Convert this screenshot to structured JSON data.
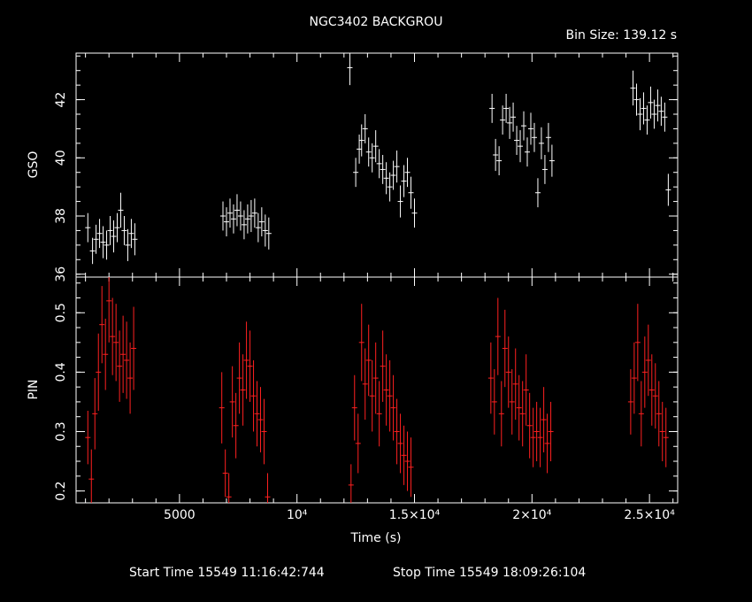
{
  "chart_data": [
    {
      "type": "scatter",
      "panel": "top",
      "title": "NGC3402 BACKGROU",
      "subtitle": "Bin Size: 139.12 s",
      "ylabel": "GSO",
      "ylim": [
        35.9,
        43.6
      ],
      "yticks": [
        36,
        38,
        40,
        42
      ],
      "ytick_labels": [
        "36",
        "38",
        "40",
        "42"
      ],
      "xlim": [
        600,
        26200
      ],
      "color": "#ffffff",
      "series": [
        {
          "x": [
            1100,
            1300,
            1450,
            1600,
            1750,
            1900,
            2050,
            2200,
            2350,
            2500,
            2650,
            2800,
            2950,
            3100,
            6850,
            7000,
            7150,
            7300,
            7450,
            7600,
            7750,
            7900,
            8050,
            8200,
            8350,
            8500,
            8650,
            8800,
            12500,
            12650,
            12750,
            12900,
            13050,
            13200,
            13350,
            13500,
            13650,
            13800,
            13950,
            14100,
            14250,
            14400,
            14550,
            14700,
            14850,
            15000,
            18300,
            18450,
            18600,
            18750,
            18900,
            19050,
            19200,
            19350,
            19500,
            19650,
            19800,
            19950,
            20100,
            20250,
            20400,
            20550,
            20700,
            20850,
            24300,
            24450,
            24600,
            24750,
            24900,
            25050,
            25200,
            25350,
            25500,
            25650,
            25800
          ],
          "y": [
            37.6,
            36.8,
            37.2,
            37.4,
            37.1,
            37.0,
            37.5,
            37.3,
            37.6,
            38.2,
            37.5,
            37.0,
            37.4,
            37.2,
            38.0,
            37.8,
            38.1,
            37.9,
            38.2,
            38.0,
            37.7,
            37.9,
            38.0,
            38.1,
            37.6,
            37.8,
            37.5,
            37.4,
            39.5,
            40.3,
            40.6,
            41.0,
            40.2,
            40.0,
            40.4,
            39.8,
            39.6,
            39.3,
            39.0,
            39.4,
            39.7,
            38.5,
            39.2,
            39.5,
            38.8,
            38.1,
            41.7,
            40.1,
            39.9,
            41.3,
            41.7,
            41.2,
            41.4,
            40.6,
            40.4,
            41.1,
            40.2,
            41.0,
            40.7,
            38.8,
            40.5,
            39.6,
            40.7,
            39.9,
            42.4,
            42.0,
            41.5,
            41.7,
            41.3,
            41.9,
            41.5,
            41.8,
            41.6,
            41.4,
            38.9
          ],
          "err": [
            0.5,
            0.45,
            0.5,
            0.5,
            0.55,
            0.5,
            0.5,
            0.55,
            0.5,
            0.6,
            0.5,
            0.55,
            0.5,
            0.55,
            0.5,
            0.5,
            0.5,
            0.5,
            0.55,
            0.5,
            0.5,
            0.5,
            0.55,
            0.5,
            0.5,
            0.5,
            0.55,
            0.55,
            0.5,
            0.5,
            0.55,
            0.5,
            0.5,
            0.5,
            0.55,
            0.5,
            0.5,
            0.55,
            0.5,
            0.5,
            0.55,
            0.55,
            0.55,
            0.5,
            0.55,
            0.5,
            0.5,
            0.55,
            0.5,
            0.5,
            0.5,
            0.55,
            0.5,
            0.5,
            0.55,
            0.5,
            0.5,
            0.55,
            0.5,
            0.5,
            0.55,
            0.5,
            0.5,
            0.55,
            0.6,
            0.55,
            0.55,
            0.55,
            0.5,
            0.55,
            0.5,
            0.55,
            0.5,
            0.5,
            0.55
          ]
        },
        {
          "x": [
            12250
          ],
          "y": [
            43.1
          ],
          "err": [
            0.6
          ]
        }
      ]
    },
    {
      "type": "scatter",
      "panel": "bottom",
      "ylabel": "PIN",
      "xlabel": "Time (s)",
      "ylim": [
        0.18,
        0.56
      ],
      "yticks": [
        0.2,
        0.3,
        0.4,
        0.5
      ],
      "ytick_labels": [
        "0.2",
        "0.3",
        "0.4",
        "0.5"
      ],
      "xlim": [
        600,
        26200
      ],
      "xticks": [
        5000,
        10000,
        15000,
        20000,
        25000
      ],
      "xtick_labels": [
        "5000",
        "10⁴",
        "1.5×10⁴",
        "2×10⁴",
        "2.5×10⁴"
      ],
      "color": "#ff2020",
      "series": [
        {
          "x": [
            1100,
            1250,
            1400,
            1550,
            1700,
            1850,
            2000,
            2150,
            2300,
            2450,
            2600,
            2750,
            2900,
            3050,
            6800,
            6950,
            7100,
            7250,
            7400,
            7550,
            7700,
            7850,
            8000,
            8150,
            8300,
            8450,
            8600,
            8750,
            12300,
            12450,
            12600,
            12750,
            12900,
            13050,
            13200,
            13350,
            13500,
            13650,
            13800,
            13950,
            14100,
            14250,
            14400,
            14550,
            14700,
            14850,
            18250,
            18400,
            18550,
            18700,
            18850,
            19000,
            19150,
            19300,
            19450,
            19600,
            19750,
            19900,
            20050,
            20200,
            20350,
            20500,
            20650,
            20800,
            24200,
            24350,
            24500,
            24650,
            24800,
            24950,
            25100,
            25250,
            25400,
            25550,
            25700
          ],
          "y": [
            0.29,
            0.22,
            0.33,
            0.4,
            0.48,
            0.43,
            0.52,
            0.46,
            0.45,
            0.41,
            0.43,
            0.42,
            0.39,
            0.44,
            0.34,
            0.23,
            0.19,
            0.35,
            0.31,
            0.39,
            0.37,
            0.42,
            0.41,
            0.36,
            0.33,
            0.32,
            0.3,
            0.19,
            0.21,
            0.34,
            0.28,
            0.45,
            0.38,
            0.42,
            0.36,
            0.39,
            0.33,
            0.41,
            0.37,
            0.36,
            0.34,
            0.3,
            0.28,
            0.26,
            0.25,
            0.24,
            0.39,
            0.35,
            0.46,
            0.33,
            0.44,
            0.4,
            0.35,
            0.38,
            0.34,
            0.33,
            0.37,
            0.31,
            0.29,
            0.3,
            0.29,
            0.32,
            0.28,
            0.3,
            0.35,
            0.39,
            0.45,
            0.33,
            0.4,
            0.42,
            0.37,
            0.36,
            0.33,
            0.3,
            0.29
          ],
          "err": [
            0.045,
            0.05,
            0.06,
            0.065,
            0.065,
            0.06,
            0.07,
            0.065,
            0.065,
            0.06,
            0.065,
            0.065,
            0.06,
            0.07,
            0.06,
            0.04,
            0.04,
            0.06,
            0.055,
            0.06,
            0.06,
            0.065,
            0.06,
            0.06,
            0.055,
            0.055,
            0.055,
            0.04,
            0.035,
            0.055,
            0.05,
            0.065,
            0.06,
            0.06,
            0.06,
            0.06,
            0.055,
            0.06,
            0.06,
            0.06,
            0.055,
            0.055,
            0.05,
            0.05,
            0.05,
            0.05,
            0.06,
            0.055,
            0.065,
            0.055,
            0.065,
            0.06,
            0.055,
            0.06,
            0.055,
            0.055,
            0.06,
            0.055,
            0.05,
            0.05,
            0.05,
            0.055,
            0.05,
            0.05,
            0.055,
            0.06,
            0.065,
            0.055,
            0.06,
            0.06,
            0.06,
            0.055,
            0.055,
            0.05,
            0.05
          ]
        }
      ]
    }
  ],
  "footer": {
    "start": "Start Time 15549  11:16:42:744",
    "stop": "Stop Time 15549  18:09:26:104"
  }
}
